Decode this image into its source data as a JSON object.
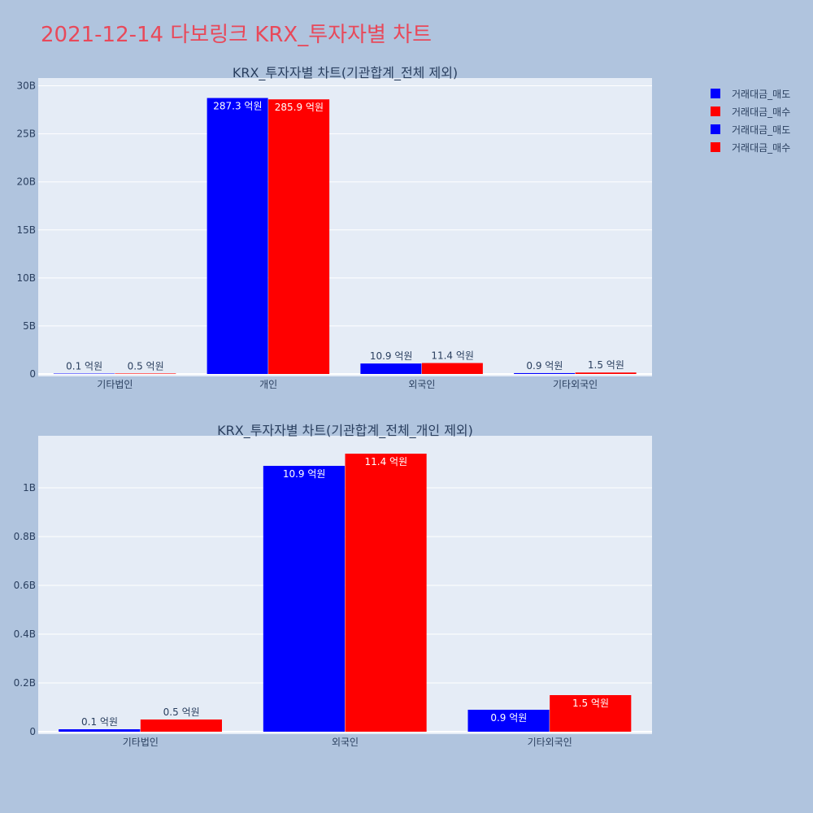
{
  "figure_title": "2021-12-14 다보링크 KRX_투자자별 차트",
  "colors": {
    "sell": "#0000ff",
    "buy": "#ff0000",
    "plot_bg": "#e5ecf6",
    "page_bg": "#b0c4de",
    "title": "#e8495a"
  },
  "legend": [
    {
      "label": "거래대금_매도",
      "color": "#0000ff"
    },
    {
      "label": "거래대금_매수",
      "color": "#ff0000"
    },
    {
      "label": "거래대금_매도",
      "color": "#0000ff"
    },
    {
      "label": "거래대금_매수",
      "color": "#ff0000"
    }
  ],
  "chart_data": [
    {
      "type": "bar",
      "title": "KRX_투자자별 차트(기관합계_전체 제외)",
      "categories": [
        "기타법인",
        "개인",
        "외국인",
        "기타외국인"
      ],
      "series": [
        {
          "name": "거래대금_매도",
          "color": "#0000ff",
          "values": [
            10000000,
            28730000000,
            1090000000,
            90000000
          ],
          "labels": [
            "0.1 억원",
            "287.3 억원",
            "10.9 억원",
            "0.9 억원"
          ]
        },
        {
          "name": "거래대금_매수",
          "color": "#ff0000",
          "values": [
            50000000,
            28590000000,
            1140000000,
            150000000
          ],
          "labels": [
            "0.5 억원",
            "285.9 억원",
            "11.4 억원",
            "1.5 억원"
          ]
        }
      ],
      "yticks": [
        0,
        5000000000,
        10000000000,
        15000000000,
        20000000000,
        25000000000,
        30000000000
      ],
      "yticklabels": [
        "0",
        "5B",
        "10B",
        "15B",
        "20B",
        "25B",
        "30B"
      ],
      "ylim": [
        0,
        30300000000
      ],
      "grid": true
    },
    {
      "type": "bar",
      "title": "KRX_투자자별 차트(기관합계_전체_개인 제외)",
      "categories": [
        "기타법인",
        "외국인",
        "기타외국인"
      ],
      "series": [
        {
          "name": "거래대금_매도",
          "color": "#0000ff",
          "values": [
            10000000,
            1090000000,
            90000000
          ],
          "labels": [
            "0.1 억원",
            "10.9 억원",
            "0.9 억원"
          ]
        },
        {
          "name": "거래대금_매수",
          "color": "#ff0000",
          "values": [
            50000000,
            1140000000,
            150000000
          ],
          "labels": [
            "0.5 억원",
            "11.4 억원",
            "1.5 억원"
          ]
        }
      ],
      "yticks": [
        0,
        200000000,
        400000000,
        600000000,
        800000000,
        1000000000
      ],
      "yticklabels": [
        "0",
        "0.2B",
        "0.4B",
        "0.6B",
        "0.8B",
        "1B"
      ],
      "ylim": [
        0,
        1200000000
      ],
      "grid": true
    }
  ]
}
